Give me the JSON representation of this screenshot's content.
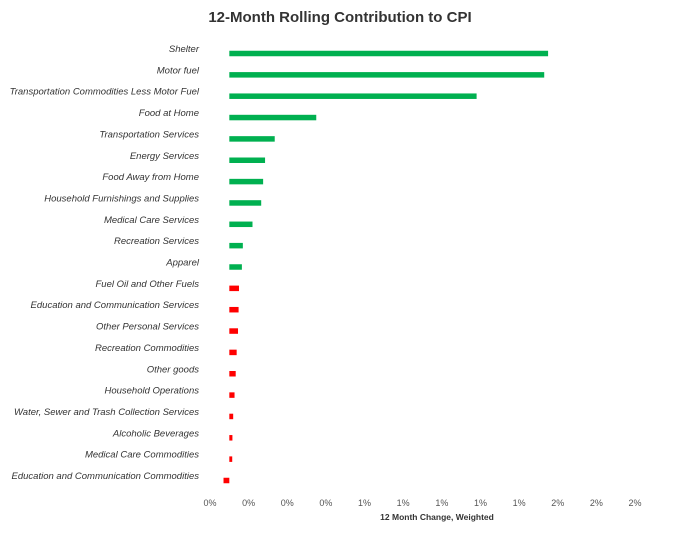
{
  "chart_data": {
    "type": "bar",
    "orientation": "horizontal",
    "title": "12-Month Rolling Contribution to CPI",
    "xlabel": "12 Month Change, Weighted",
    "ylabel": "",
    "xlim": [
      -0.1,
      2.25
    ],
    "x_ticks": [
      -0.1,
      0.1,
      0.3,
      0.5,
      0.7,
      0.9,
      1.1,
      1.3,
      1.5,
      1.7,
      1.9,
      2.1
    ],
    "x_tick_labels": [
      "0%",
      "0%",
      "0%",
      "0%",
      "1%",
      "1%",
      "1%",
      "1%",
      "1%",
      "2%",
      "2%",
      "2%"
    ],
    "grid": false,
    "legend": "none",
    "positive_color": "#00b050",
    "negative_color": "#ff0000",
    "categories": [
      "Shelter",
      "Motor fuel",
      "Transportation Commodities Less Motor Fuel",
      "Food at Home",
      "Transportation Services",
      "Energy Services",
      "Food Away from Home",
      "Household Furnishings and Supplies",
      "Medical Care Services",
      "Recreation Services",
      "Apparel",
      "Fuel Oil and Other Fuels",
      "Education and Communication Services",
      "Other Personal Services",
      "Recreation Commodities",
      "Other goods",
      "Household Operations",
      "Water, Sewer and Trash Collection Services",
      "Alcoholic Beverages",
      "Medical Care Commodities",
      "Education and Communication Commodities"
    ],
    "values": [
      1.65,
      1.63,
      1.28,
      0.45,
      0.235,
      0.185,
      0.175,
      0.165,
      0.12,
      0.07,
      0.065,
      0.05,
      0.048,
      0.045,
      0.038,
      0.033,
      0.027,
      0.02,
      0.016,
      0.015,
      -0.03
    ],
    "series_class": [
      "positive",
      "positive",
      "positive",
      "positive",
      "positive",
      "positive",
      "positive",
      "positive",
      "positive",
      "positive",
      "positive",
      "negative",
      "negative",
      "negative",
      "negative",
      "negative",
      "negative",
      "negative",
      "negative",
      "negative",
      "negative"
    ]
  }
}
